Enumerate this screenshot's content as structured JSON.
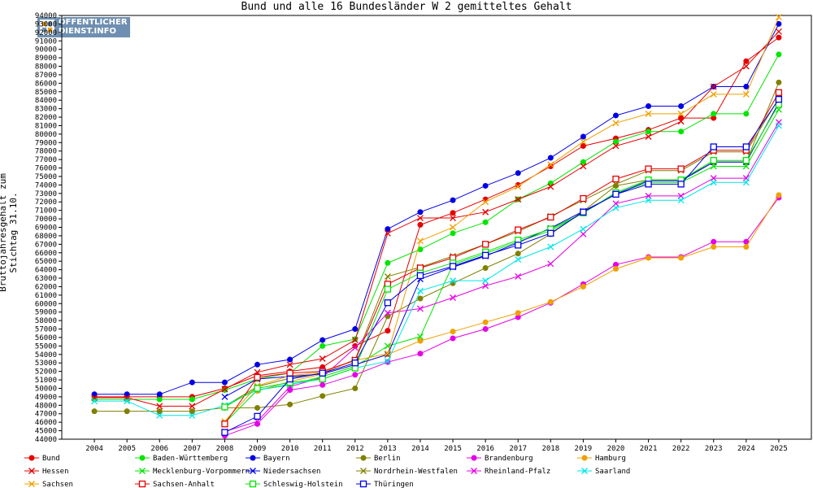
{
  "title": "Bund und alle 16 Bundesländer W 2 gemitteltes Gehalt",
  "logo": {
    "line1": "ÖFFENTLICHER",
    "line2": "DIENST.INFO",
    "color": "#6e8fb1"
  },
  "chart_data": {
    "type": "line",
    "title": "Bund und alle 16 Bundesländer W 2 gemitteltes Gehalt",
    "xlabel": "",
    "ylabel": "Bruttojahresgehalt zum Stichtag 31.10.",
    "x": [
      2004,
      2005,
      2006,
      2007,
      2008,
      2009,
      2010,
      2011,
      2012,
      2013,
      2014,
      2015,
      2016,
      2017,
      2018,
      2019,
      2020,
      2021,
      2022,
      2023,
      2024,
      2025
    ],
    "xlim": [
      2003,
      2026
    ],
    "ylim": [
      44000,
      94000
    ],
    "ytick_step": 1000,
    "grid": false,
    "legend_position": "bottom",
    "series": [
      {
        "name": "Bund",
        "color": "#e60000",
        "marker": "dot",
        "values": [
          49000,
          49000,
          49000,
          49000,
          50000,
          51500,
          52000,
          52500,
          55000,
          56800,
          69300,
          70700,
          72300,
          74000,
          76200,
          78600,
          79500,
          80500,
          81900,
          81900,
          88600,
          91400
        ]
      },
      {
        "name": "Baden-Württemberg",
        "color": "#00e600",
        "marker": "dot",
        "values": [
          48700,
          48700,
          48700,
          48700,
          49800,
          51100,
          51800,
          55000,
          55800,
          64800,
          66400,
          68300,
          69600,
          72300,
          74200,
          76700,
          79100,
          80300,
          80300,
          82400,
          82400,
          89400
        ]
      },
      {
        "name": "Bayern",
        "color": "#0000e6",
        "marker": "dot",
        "values": [
          49300,
          49300,
          49300,
          50700,
          50700,
          52800,
          53400,
          55700,
          57000,
          68800,
          70800,
          72200,
          73900,
          75400,
          77200,
          79700,
          82200,
          83300,
          83300,
          85600,
          85600,
          93000
        ]
      },
      {
        "name": "Berlin",
        "color": "#808000",
        "marker": "dot",
        "values": [
          47300,
          47300,
          47300,
          47300,
          47700,
          47700,
          48100,
          49100,
          50000,
          58500,
          60600,
          62400,
          64200,
          65900,
          68200,
          70900,
          73900,
          74600,
          74600,
          76700,
          76700,
          86100
        ]
      },
      {
        "name": "Brandenburg",
        "color": "#e600e6",
        "marker": "dot",
        "values": [
          null,
          null,
          null,
          null,
          44400,
          45800,
          49800,
          50400,
          51600,
          53100,
          54100,
          55900,
          57000,
          58400,
          60100,
          62300,
          64600,
          65500,
          65500,
          67300,
          67300,
          72500
        ]
      },
      {
        "name": "Hamburg",
        "color": "#f0a000",
        "marker": "dot",
        "values": [
          null,
          null,
          null,
          null,
          null,
          49700,
          50800,
          51700,
          52800,
          54000,
          55600,
          56700,
          57800,
          58900,
          60200,
          62000,
          64100,
          65400,
          65400,
          66700,
          66700,
          72800
        ]
      },
      {
        "name": "Hessen",
        "color": "#e60000",
        "marker": "x",
        "values": [
          48900,
          48900,
          47900,
          47900,
          49900,
          51900,
          52800,
          53500,
          55700,
          68300,
          70100,
          70100,
          70800,
          72300,
          73800,
          76200,
          78600,
          79700,
          81500,
          85600,
          88000,
          92100
        ]
      },
      {
        "name": "Mecklenburg-Vorpommern",
        "color": "#00e600",
        "marker": "x",
        "values": [
          null,
          null,
          null,
          null,
          45900,
          49800,
          50400,
          51400,
          52600,
          55000,
          56100,
          64600,
          65900,
          67300,
          68600,
          70700,
          73000,
          74300,
          74300,
          76200,
          76200,
          82900
        ]
      },
      {
        "name": "Niedersachsen",
        "color": "#0000e6",
        "marker": "x",
        "values": [
          null,
          null,
          null,
          null,
          49000,
          51100,
          51400,
          51700,
          52800,
          54000,
          62900,
          64300,
          65600,
          67200,
          68900,
          70900,
          72900,
          74500,
          74500,
          76700,
          76700,
          83700
        ]
      },
      {
        "name": "Nordrhein-Westfalen",
        "color": "#808000",
        "marker": "x",
        "values": [
          null,
          null,
          null,
          null,
          47900,
          50200,
          51200,
          51800,
          53400,
          63200,
          64300,
          65600,
          67000,
          68500,
          70300,
          72200,
          74100,
          75700,
          75700,
          77900,
          77900,
          84200
        ]
      },
      {
        "name": "Rheinland-Pfalz",
        "color": "#e600e6",
        "marker": "x",
        "values": [
          null,
          null,
          null,
          null,
          44900,
          46100,
          50200,
          51300,
          54800,
          58900,
          59400,
          60700,
          62100,
          63200,
          64700,
          68200,
          71800,
          72700,
          72700,
          74800,
          74800,
          81400
        ]
      },
      {
        "name": "Saarland",
        "color": "#00e6e6",
        "marker": "x",
        "values": [
          48500,
          48500,
          46800,
          46800,
          48000,
          49800,
          50500,
          51100,
          52400,
          53200,
          61500,
          62700,
          62700,
          65200,
          66700,
          68800,
          71300,
          72200,
          72200,
          74300,
          74300,
          81000
        ]
      },
      {
        "name": "Sachsen",
        "color": "#f0a000",
        "marker": "x",
        "values": [
          null,
          null,
          null,
          null,
          46100,
          50300,
          51500,
          51900,
          53300,
          54100,
          67400,
          69000,
          72000,
          73800,
          76400,
          79100,
          81300,
          82400,
          82400,
          84700,
          84700,
          93800
        ]
      },
      {
        "name": "Sachsen-Anhalt",
        "color": "#e60000",
        "marker": "square",
        "values": [
          null,
          null,
          null,
          null,
          45800,
          51300,
          51800,
          52000,
          53300,
          62300,
          64200,
          65400,
          67000,
          68700,
          70200,
          72400,
          74700,
          75900,
          75900,
          78100,
          78100,
          84900
        ]
      },
      {
        "name": "Schleswig-Holstein",
        "color": "#00e600",
        "marker": "square",
        "values": [
          null,
          null,
          null,
          null,
          47800,
          50000,
          50700,
          51100,
          52400,
          61700,
          63600,
          64800,
          66100,
          67500,
          68800,
          70700,
          73100,
          74600,
          74600,
          76900,
          76900,
          83500
        ]
      },
      {
        "name": "Thüringen",
        "color": "#0000e6",
        "marker": "square",
        "values": [
          null,
          null,
          null,
          null,
          44800,
          46700,
          51100,
          51800,
          53000,
          60100,
          63300,
          64400,
          65700,
          66900,
          68300,
          70800,
          72900,
          74100,
          74100,
          78500,
          78500,
          84100
        ]
      }
    ]
  }
}
